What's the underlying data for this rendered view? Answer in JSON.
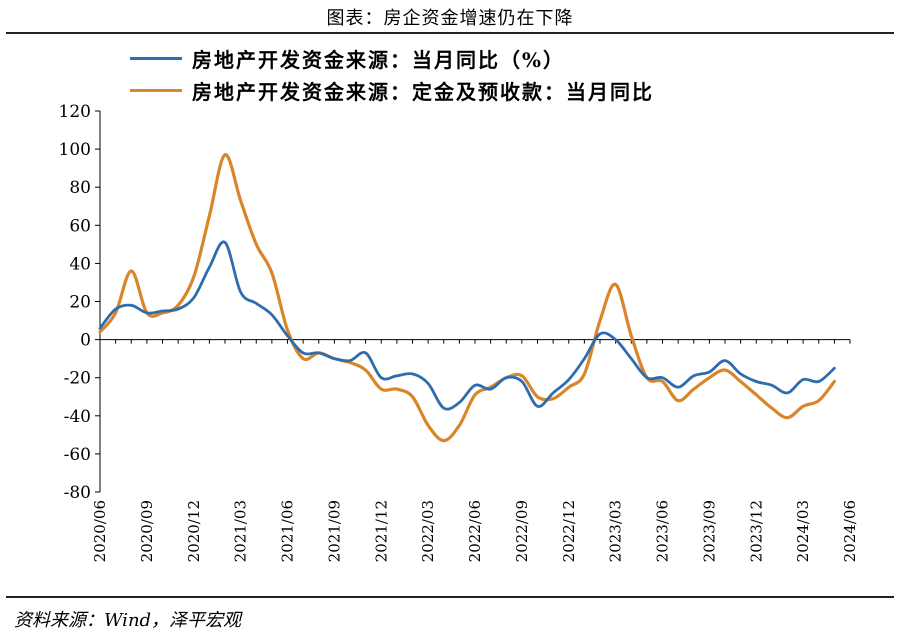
{
  "page": {
    "title": "图表：房企资金增速仍在下降",
    "source": "资料来源：Wind，泽平宏观"
  },
  "chart_data": {
    "type": "line",
    "title": "",
    "xlabel": "",
    "ylabel": "",
    "ylim": [
      -80,
      120
    ],
    "yticks": [
      120,
      100,
      80,
      60,
      40,
      20,
      0,
      -20,
      -40,
      -60,
      -80
    ],
    "xticks": [
      "2020/06",
      "2020/09",
      "2020/12",
      "2021/03",
      "2021/06",
      "2021/09",
      "2021/12",
      "2022/03",
      "2022/06",
      "2022/09",
      "2022/12",
      "2023/03",
      "2023/06",
      "2023/09",
      "2023/12",
      "2024/03",
      "2024/06"
    ],
    "legend_position": "top",
    "series": [
      {
        "name": "房地产开发资金来源：当月同比（%）",
        "color": "#2e6dad",
        "points": [
          [
            "2020/06",
            6
          ],
          [
            "2020/07",
            16
          ],
          [
            "2020/08",
            18
          ],
          [
            "2020/09",
            14
          ],
          [
            "2020/10",
            15
          ],
          [
            "2020/11",
            16
          ],
          [
            "2020/12",
            22
          ],
          [
            "2021/01",
            38
          ],
          [
            "2021/02",
            51
          ],
          [
            "2021/03",
            25
          ],
          [
            "2021/04",
            19
          ],
          [
            "2021/05",
            13
          ],
          [
            "2021/06",
            2
          ],
          [
            "2021/07",
            -7
          ],
          [
            "2021/08",
            -7
          ],
          [
            "2021/09",
            -10
          ],
          [
            "2021/10",
            -11
          ],
          [
            "2021/11",
            -7
          ],
          [
            "2021/12",
            -20
          ],
          [
            "2022/01",
            -19
          ],
          [
            "2022/02",
            -18
          ],
          [
            "2022/03",
            -23
          ],
          [
            "2022/04",
            -36
          ],
          [
            "2022/05",
            -33
          ],
          [
            "2022/06",
            -24
          ],
          [
            "2022/07",
            -26
          ],
          [
            "2022/08",
            -20
          ],
          [
            "2022/09",
            -22
          ],
          [
            "2022/10",
            -35
          ],
          [
            "2022/11",
            -28
          ],
          [
            "2022/12",
            -21
          ],
          [
            "2023/01",
            -10
          ],
          [
            "2023/02",
            3
          ],
          [
            "2023/03",
            0
          ],
          [
            "2023/04",
            -10
          ],
          [
            "2023/05",
            -20
          ],
          [
            "2023/06",
            -20
          ],
          [
            "2023/07",
            -25
          ],
          [
            "2023/08",
            -19
          ],
          [
            "2023/09",
            -17
          ],
          [
            "2023/10",
            -11
          ],
          [
            "2023/11",
            -18
          ],
          [
            "2023/12",
            -22
          ],
          [
            "2024/01",
            -24
          ],
          [
            "2024/02",
            -28
          ],
          [
            "2024/03",
            -21
          ],
          [
            "2024/04",
            -22
          ],
          [
            "2024/05",
            -15
          ]
        ]
      },
      {
        "name": "房地产开发资金来源：定金及预收款：当月同比",
        "color": "#d9852a",
        "points": [
          [
            "2020/06",
            4
          ],
          [
            "2020/07",
            14
          ],
          [
            "2020/08",
            36
          ],
          [
            "2020/09",
            14
          ],
          [
            "2020/10",
            14
          ],
          [
            "2020/11",
            18
          ],
          [
            "2020/12",
            33
          ],
          [
            "2021/01",
            65
          ],
          [
            "2021/02",
            97
          ],
          [
            "2021/03",
            73
          ],
          [
            "2021/04",
            50
          ],
          [
            "2021/05",
            35
          ],
          [
            "2021/06",
            5
          ],
          [
            "2021/07",
            -10
          ],
          [
            "2021/08",
            -7
          ],
          [
            "2021/09",
            -10
          ],
          [
            "2021/10",
            -12
          ],
          [
            "2021/11",
            -16
          ],
          [
            "2021/12",
            -26
          ],
          [
            "2022/01",
            -26
          ],
          [
            "2022/02",
            -30
          ],
          [
            "2022/03",
            -45
          ],
          [
            "2022/04",
            -53
          ],
          [
            "2022/05",
            -45
          ],
          [
            "2022/06",
            -29
          ],
          [
            "2022/07",
            -25
          ],
          [
            "2022/08",
            -20
          ],
          [
            "2022/09",
            -19
          ],
          [
            "2022/10",
            -30
          ],
          [
            "2022/11",
            -31
          ],
          [
            "2022/12",
            -25
          ],
          [
            "2023/01",
            -18
          ],
          [
            "2023/02",
            10
          ],
          [
            "2023/03",
            29
          ],
          [
            "2023/04",
            2
          ],
          [
            "2023/05",
            -20
          ],
          [
            "2023/06",
            -22
          ],
          [
            "2023/07",
            -32
          ],
          [
            "2023/08",
            -26
          ],
          [
            "2023/09",
            -20
          ],
          [
            "2023/10",
            -16
          ],
          [
            "2023/11",
            -22
          ],
          [
            "2023/12",
            -29
          ],
          [
            "2024/01",
            -36
          ],
          [
            "2024/02",
            -41
          ],
          [
            "2024/03",
            -35
          ],
          [
            "2024/04",
            -32
          ],
          [
            "2024/05",
            -22
          ]
        ]
      }
    ]
  }
}
